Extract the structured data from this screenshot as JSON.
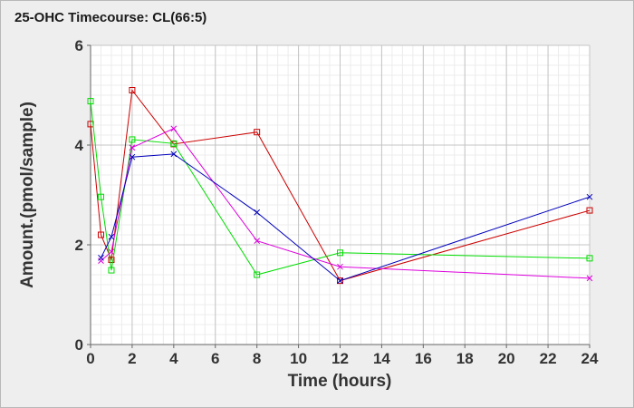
{
  "chart_data": {
    "type": "line",
    "title": "25-OHC Timecourse: CL(66:5)",
    "xlabel": "Time (hours)",
    "ylabel": "Amount.(pmol/sample)",
    "xlim": [
      0,
      24
    ],
    "ylim": [
      0,
      6
    ],
    "x_ticks": [
      0,
      2,
      4,
      6,
      8,
      10,
      12,
      14,
      16,
      18,
      20,
      22,
      24
    ],
    "y_ticks": [
      0,
      2,
      4,
      6
    ],
    "grid": true,
    "legend": "none",
    "series": [
      {
        "color": "#cc0000",
        "marker": "square",
        "x": [
          0,
          0.5,
          1,
          2,
          4,
          8,
          12,
          24
        ],
        "y": [
          4.42,
          2.2,
          1.7,
          5.1,
          4.02,
          4.26,
          1.28,
          2.69
        ]
      },
      {
        "color": "#00dd00",
        "marker": "square",
        "x": [
          0,
          0.5,
          1,
          2,
          4,
          8,
          12,
          24
        ],
        "y": [
          4.88,
          2.96,
          1.49,
          4.11,
          4.03,
          1.4,
          1.84,
          1.73
        ]
      },
      {
        "color": "#dd00dd",
        "marker": "x",
        "x": [
          0.5,
          1,
          2,
          4,
          8,
          12,
          24
        ],
        "y": [
          1.68,
          1.86,
          3.95,
          4.33,
          2.08,
          1.56,
          1.33
        ]
      },
      {
        "color": "#0000bb",
        "marker": "x",
        "x": [
          0.5,
          1,
          2,
          4,
          8,
          12,
          24
        ],
        "y": [
          1.74,
          2.16,
          3.76,
          3.82,
          2.65,
          1.28,
          2.96
        ]
      }
    ]
  }
}
